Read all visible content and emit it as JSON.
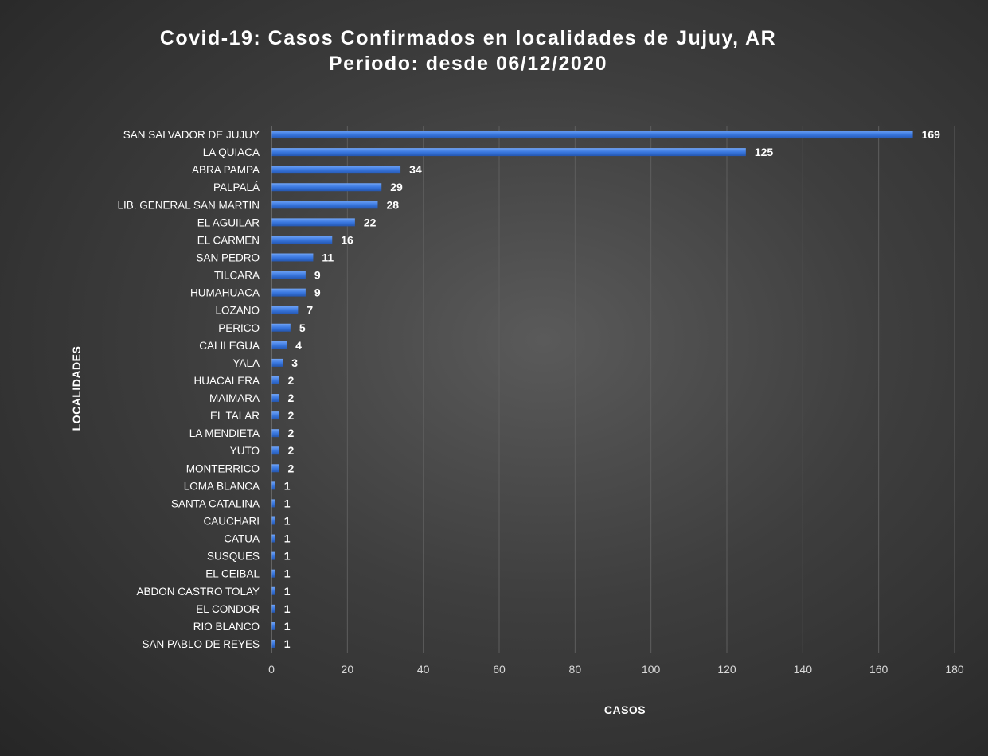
{
  "chart_data": {
    "type": "bar",
    "orientation": "horizontal",
    "title_line1": "Covid-19: Casos Confirmados en localidades de Jujuy, AR",
    "title_line2": "Periodo: desde 06/12/2020",
    "xlabel": "CASOS",
    "ylabel": "LOCALIDADES",
    "xlim": [
      0,
      180
    ],
    "xticks": [
      0,
      20,
      40,
      60,
      80,
      100,
      120,
      140,
      160,
      180
    ],
    "grid": true,
    "bar_color": "#3a78e0",
    "categories": [
      "SAN SALVADOR DE JUJUY",
      "LA QUIACA",
      "ABRA PAMPA",
      "PALPALÁ",
      "LIB. GENERAL SAN MARTIN",
      "EL AGUILAR",
      "EL CARMEN",
      "SAN PEDRO",
      "TILCARA",
      "HUMAHUACA",
      "LOZANO",
      "PERICO",
      "CALILEGUA",
      "YALA",
      "HUACALERA",
      "MAIMARA",
      "EL TALAR",
      "LA MENDIETA",
      "YUTO",
      "MONTERRICO",
      "LOMA BLANCA",
      "SANTA CATALINA",
      "CAUCHARI",
      "CATUA",
      "SUSQUES",
      "EL CEIBAL",
      "ABDON CASTRO TOLAY",
      "EL CONDOR",
      "RIO BLANCO",
      "SAN PABLO DE REYES"
    ],
    "values": [
      169,
      125,
      34,
      29,
      28,
      22,
      16,
      11,
      9,
      9,
      7,
      5,
      4,
      3,
      2,
      2,
      2,
      2,
      2,
      2,
      1,
      1,
      1,
      1,
      1,
      1,
      1,
      1,
      1,
      1
    ]
  }
}
